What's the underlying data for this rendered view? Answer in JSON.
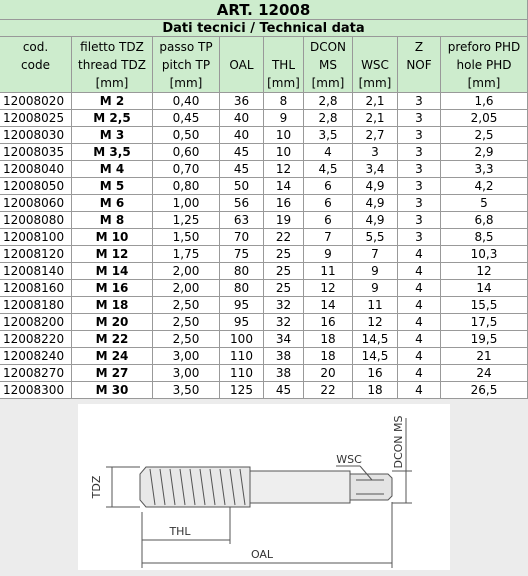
{
  "title": "ART. 12008",
  "subtitle": "Dati tecnici / Technical data",
  "header": [
    [
      "cod.",
      "code"
    ],
    [
      "filetto TDZ",
      "thread TDZ",
      "[mm]"
    ],
    [
      "passo TP",
      "pitch TP",
      "[mm]"
    ],
    [
      "OAL"
    ],
    [
      "THL",
      "[mm]"
    ],
    [
      "DCON",
      "MS",
      "[mm]"
    ],
    [
      "WSC",
      "[mm]"
    ],
    [
      "Z",
      "NOF"
    ],
    [
      "preforo PHD",
      "hole PHD",
      "[mm]"
    ]
  ],
  "rows": [
    [
      "12008020",
      "M 2",
      "0,40",
      "36",
      "8",
      "2,8",
      "2,1",
      "3",
      "1,6"
    ],
    [
      "12008025",
      "M 2,5",
      "0,45",
      "40",
      "9",
      "2,8",
      "2,1",
      "3",
      "2,05"
    ],
    [
      "12008030",
      "M 3",
      "0,50",
      "40",
      "10",
      "3,5",
      "2,7",
      "3",
      "2,5"
    ],
    [
      "12008035",
      "M 3,5",
      "0,60",
      "45",
      "10",
      "4",
      "3",
      "3",
      "2,9"
    ],
    [
      "12008040",
      "M 4",
      "0,70",
      "45",
      "12",
      "4,5",
      "3,4",
      "3",
      "3,3"
    ],
    [
      "12008050",
      "M 5",
      "0,80",
      "50",
      "14",
      "6",
      "4,9",
      "3",
      "4,2"
    ],
    [
      "12008060",
      "M 6",
      "1,00",
      "56",
      "16",
      "6",
      "4,9",
      "3",
      "5"
    ],
    [
      "12008080",
      "M 8",
      "1,25",
      "63",
      "19",
      "6",
      "4,9",
      "3",
      "6,8"
    ],
    [
      "12008100",
      "M 10",
      "1,50",
      "70",
      "22",
      "7",
      "5,5",
      "3",
      "8,5"
    ],
    [
      "12008120",
      "M 12",
      "1,75",
      "75",
      "25",
      "9",
      "7",
      "4",
      "10,3"
    ],
    [
      "12008140",
      "M 14",
      "2,00",
      "80",
      "25",
      "11",
      "9",
      "4",
      "12"
    ],
    [
      "12008160",
      "M 16",
      "2,00",
      "80",
      "25",
      "12",
      "9",
      "4",
      "14"
    ],
    [
      "12008180",
      "M 18",
      "2,50",
      "95",
      "32",
      "14",
      "11",
      "4",
      "15,5"
    ],
    [
      "12008200",
      "M 20",
      "2,50",
      "95",
      "32",
      "16",
      "12",
      "4",
      "17,5"
    ],
    [
      "12008220",
      "M 22",
      "2,50",
      "100",
      "34",
      "18",
      "14,5",
      "4",
      "19,5"
    ],
    [
      "12008240",
      "M 24",
      "3,00",
      "110",
      "38",
      "18",
      "14,5",
      "4",
      "21"
    ],
    [
      "12008270",
      "M 27",
      "3,00",
      "110",
      "38",
      "20",
      "16",
      "4",
      "24"
    ],
    [
      "12008300",
      "M 30",
      "3,50",
      "125",
      "45",
      "22",
      "18",
      "4",
      "26,5"
    ]
  ],
  "diagram": {
    "tdz": "TDZ",
    "thl": "THL",
    "oal": "OAL",
    "wsc": "WSC",
    "dcon": "DCON MS"
  }
}
